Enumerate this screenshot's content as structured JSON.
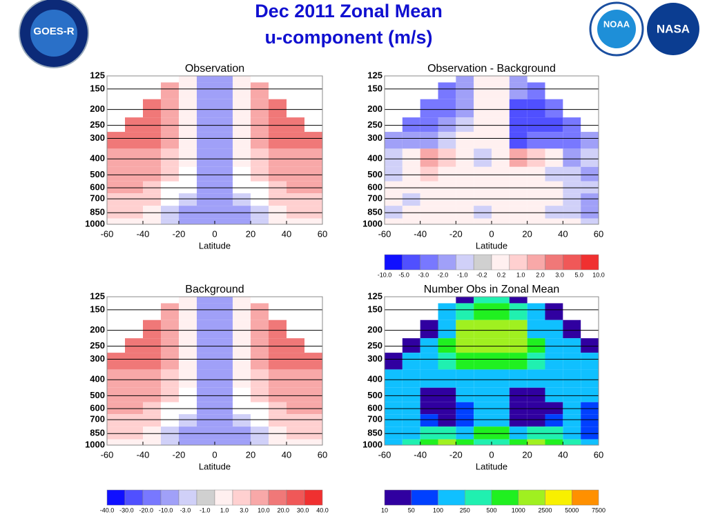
{
  "title": [
    "Dec 2011 Zonal Mean",
    "u-component (m/s)"
  ],
  "logos": [
    "GOES-R",
    "NOAA",
    "NASA"
  ],
  "chart_data": [
    {
      "type": "heatmap",
      "title": "Observation",
      "xlabel": "Latitude",
      "x": [
        -55,
        -45,
        -35,
        -25,
        -15,
        -5,
        5,
        15,
        25,
        35,
        45,
        55
      ],
      "y": [
        125,
        150,
        200,
        250,
        300,
        400,
        500,
        600,
        700,
        850,
        1000
      ],
      "xlim": [
        -60,
        60
      ],
      "xticks": [
        -60,
        -40,
        -20,
        0,
        20,
        40,
        60
      ],
      "ylim": [
        125,
        1000
      ],
      "yticks": [
        125,
        150,
        200,
        250,
        300,
        400,
        500,
        600,
        700,
        850,
        1000
      ],
      "ylog": true,
      "z": [
        [
          null,
          null,
          null,
          null,
          2,
          -8,
          -8,
          2,
          null,
          null,
          null,
          null
        ],
        [
          null,
          null,
          null,
          12,
          3,
          -8,
          -8,
          3,
          12,
          null,
          null,
          null
        ],
        [
          null,
          null,
          22,
          15,
          3,
          -6,
          -6,
          3,
          15,
          22,
          null,
          null
        ],
        [
          null,
          25,
          25,
          15,
          2,
          -5,
          -5,
          2,
          15,
          25,
          25,
          null
        ],
        [
          22,
          25,
          22,
          12,
          2,
          -4,
          -4,
          2,
          12,
          22,
          25,
          22
        ],
        [
          18,
          20,
          18,
          10,
          1.5,
          -3,
          -3,
          1.5,
          10,
          18,
          20,
          18
        ],
        [
          14,
          15,
          12,
          5,
          null,
          -4,
          -4,
          null,
          5,
          12,
          15,
          14
        ],
        [
          12,
          12,
          8,
          null,
          null,
          -5,
          -5,
          null,
          null,
          8,
          12,
          12
        ],
        [
          10,
          10,
          5,
          null,
          -2,
          -6,
          -6,
          -2,
          null,
          5,
          10,
          10
        ],
        [
          8,
          6,
          3,
          -2,
          -3,
          -6,
          -6,
          -3,
          -2,
          3,
          6,
          8
        ],
        [
          3,
          2,
          1.5,
          -2,
          -4,
          -5,
          -5,
          -4,
          -2,
          1.5,
          2,
          3
        ]
      ]
    },
    {
      "type": "heatmap",
      "title": "Observation - Background",
      "xlabel": "Latitude",
      "x": [
        -55,
        -45,
        -35,
        -25,
        -15,
        -5,
        5,
        15,
        25,
        35,
        45,
        55
      ],
      "y": [
        125,
        150,
        200,
        250,
        300,
        400,
        500,
        600,
        700,
        850,
        1000
      ],
      "xlim": [
        -60,
        60
      ],
      "xticks": [
        -60,
        -40,
        -20,
        0,
        20,
        40,
        60
      ],
      "ylim": [
        125,
        1000
      ],
      "yticks": [
        125,
        150,
        200,
        250,
        300,
        400,
        500,
        600,
        700,
        850,
        1000
      ],
      "ylog": true,
      "z": [
        [
          null,
          null,
          null,
          null,
          -1.5,
          0.5,
          0.5,
          -1.5,
          null,
          null,
          null,
          null
        ],
        [
          null,
          null,
          null,
          -2,
          -1.5,
          0.5,
          0.5,
          -1.5,
          -2,
          null,
          null,
          null
        ],
        [
          null,
          null,
          -2.5,
          -2,
          -1,
          0.5,
          0.5,
          -3.5,
          -4,
          -2.5,
          null,
          null
        ],
        [
          null,
          -2,
          -2,
          -1.5,
          -0.5,
          0.5,
          0.5,
          -4,
          -4,
          -3,
          -2,
          null
        ],
        [
          -1,
          -1.5,
          -1,
          -0.5,
          0.5,
          0.5,
          0.5,
          -3,
          -2,
          -2,
          -2,
          -1
        ],
        [
          -0.5,
          0.5,
          2.5,
          1.5,
          0.5,
          -0.5,
          0.5,
          2.5,
          1.5,
          0.5,
          -1,
          -0.5
        ],
        [
          -0.5,
          0.5,
          1.5,
          0.5,
          0.5,
          0.5,
          0.5,
          1,
          0.5,
          -0.5,
          -0.5,
          -1
        ],
        [
          0.5,
          0.5,
          0.5,
          0.5,
          0.5,
          0.5,
          0.5,
          0.5,
          0.5,
          0.5,
          -0.5,
          -0.5
        ],
        [
          0.5,
          -0.5,
          0.5,
          0.5,
          0.5,
          0.5,
          0.5,
          0.5,
          0.5,
          0.5,
          -0.5,
          -1
        ],
        [
          -0.5,
          0.5,
          0.5,
          0.5,
          0.5,
          -0.5,
          0.5,
          0.5,
          0.5,
          -0.5,
          -0.5,
          -1
        ],
        [
          0.5,
          0.5,
          0.5,
          0.5,
          0.5,
          0.5,
          0.5,
          0.5,
          0.5,
          0.5,
          0.5,
          -0.5
        ]
      ],
      "colorbar": {
        "colors": [
          "#1010ff",
          "#5050ff",
          "#7878ff",
          "#a0a0f8",
          "#d0d0f8",
          "#d0d0d0",
          "#fff0f0",
          "#ffd0d0",
          "#f8a8a8",
          "#f07878",
          "#f05858",
          "#f03030"
        ],
        "ticks": [
          {
            "value": -10,
            "label": "-10.0"
          },
          {
            "value": -5,
            "label": "-5.0"
          },
          {
            "value": -3,
            "label": "-3.0"
          },
          {
            "value": -2,
            "label": "-2.0"
          },
          {
            "value": -1,
            "label": "-1.0"
          },
          -0.2,
          0.2,
          {
            "value": 1,
            "label": "1.0"
          },
          {
            "value": 2,
            "label": "2.0"
          },
          {
            "value": 3,
            "label": "3.0"
          },
          {
            "value": 5,
            "label": "5.0"
          },
          {
            "value": 10,
            "label": "10.0"
          }
        ]
      }
    },
    {
      "type": "heatmap",
      "title": "Background",
      "xlabel": "Latitude",
      "x": [
        -55,
        -45,
        -35,
        -25,
        -15,
        -5,
        5,
        15,
        25,
        35,
        45,
        55
      ],
      "y": [
        125,
        150,
        200,
        250,
        300,
        400,
        500,
        600,
        700,
        850,
        1000
      ],
      "xlim": [
        -60,
        60
      ],
      "xticks": [
        -60,
        -40,
        -20,
        0,
        20,
        40,
        60
      ],
      "ylim": [
        125,
        1000
      ],
      "yticks": [
        125,
        150,
        200,
        250,
        300,
        400,
        500,
        600,
        700,
        850,
        1000
      ],
      "ylog": true,
      "z": [
        [
          null,
          null,
          null,
          null,
          2,
          -8,
          -8,
          2,
          null,
          null,
          null,
          null
        ],
        [
          null,
          null,
          null,
          12,
          3,
          -8,
          -8,
          3,
          12,
          null,
          null,
          null
        ],
        [
          null,
          null,
          22,
          15,
          3,
          -6,
          -6,
          3,
          15,
          22,
          null,
          null
        ],
        [
          null,
          25,
          25,
          15,
          2,
          -5,
          -5,
          2,
          15,
          25,
          25,
          null
        ],
        [
          22,
          25,
          22,
          12,
          2,
          -4,
          -4,
          2,
          12,
          22,
          25,
          22
        ],
        [
          18,
          20,
          18,
          10,
          1.5,
          -3,
          -3,
          1.5,
          10,
          18,
          20,
          18
        ],
        [
          14,
          15,
          12,
          5,
          null,
          -4,
          -4,
          null,
          5,
          12,
          15,
          14
        ],
        [
          12,
          12,
          8,
          null,
          null,
          -5,
          -5,
          null,
          null,
          8,
          12,
          12
        ],
        [
          10,
          10,
          5,
          null,
          -2,
          -6,
          -6,
          -2,
          null,
          5,
          10,
          10
        ],
        [
          8,
          6,
          3,
          -2,
          -3,
          -6,
          -6,
          -3,
          -2,
          3,
          6,
          8
        ],
        [
          3,
          2,
          1.5,
          -2,
          -4,
          -5,
          -5,
          -4,
          -2,
          1.5,
          2,
          3
        ]
      ],
      "colorbar": {
        "colors": [
          "#1010ff",
          "#5050ff",
          "#7878ff",
          "#a0a0f8",
          "#d0d0f8",
          "#d0d0d0",
          "#fff0f0",
          "#ffd0d0",
          "#f8a8a8",
          "#f07878",
          "#f05858",
          "#f03030"
        ],
        "ticks": [
          {
            "value": -40,
            "label": "-40.0"
          },
          {
            "value": -30,
            "label": "-30.0"
          },
          {
            "value": -20,
            "label": "-20.0"
          },
          {
            "value": -10,
            "label": "-10.0"
          },
          {
            "value": -3,
            "label": "-3.0"
          },
          {
            "value": -1,
            "label": "-1.0"
          },
          {
            "value": 1,
            "label": "1.0"
          },
          {
            "value": 3,
            "label": "3.0"
          },
          {
            "value": 10,
            "label": "10.0"
          },
          {
            "value": 20,
            "label": "20.0"
          },
          {
            "value": 30,
            "label": "30.0"
          },
          {
            "value": 40,
            "label": "40.0"
          }
        ]
      }
    },
    {
      "type": "heatmap",
      "title": "Number Obs in Zonal Mean",
      "xlabel": "Latitude",
      "x": [
        -55,
        -45,
        -35,
        -25,
        -15,
        -5,
        5,
        15,
        25,
        35,
        45,
        55
      ],
      "y": [
        125,
        150,
        200,
        250,
        300,
        400,
        500,
        600,
        700,
        850,
        1000
      ],
      "xlim": [
        -60,
        60
      ],
      "xticks": [
        -60,
        -40,
        -20,
        0,
        20,
        40,
        60
      ],
      "ylim": [
        125,
        1000
      ],
      "yticks": [
        125,
        150,
        200,
        250,
        300,
        400,
        500,
        600,
        700,
        850,
        1000
      ],
      "ylog": true,
      "z": [
        [
          null,
          null,
          null,
          null,
          20,
          300,
          300,
          20,
          null,
          null,
          null,
          null
        ],
        [
          null,
          null,
          null,
          150,
          300,
          600,
          600,
          300,
          150,
          20,
          null,
          null
        ],
        [
          null,
          null,
          20,
          150,
          1500,
          1500,
          1500,
          1500,
          200,
          150,
          20,
          null
        ],
        [
          null,
          20,
          150,
          600,
          1500,
          1500,
          1500,
          1500,
          600,
          150,
          150,
          20
        ],
        [
          20,
          150,
          150,
          300,
          600,
          600,
          600,
          600,
          300,
          150,
          150,
          150
        ],
        [
          150,
          150,
          150,
          150,
          150,
          150,
          150,
          150,
          150,
          150,
          150,
          150
        ],
        [
          150,
          150,
          20,
          20,
          150,
          150,
          150,
          20,
          20,
          150,
          150,
          150
        ],
        [
          150,
          150,
          20,
          20,
          80,
          150,
          150,
          20,
          20,
          20,
          150,
          80
        ],
        [
          150,
          150,
          80,
          20,
          80,
          150,
          150,
          20,
          20,
          80,
          150,
          80
        ],
        [
          150,
          150,
          300,
          300,
          150,
          600,
          600,
          150,
          300,
          300,
          150,
          80
        ],
        [
          150,
          300,
          600,
          1500,
          600,
          300,
          300,
          600,
          1500,
          600,
          300,
          150
        ]
      ],
      "colorbar": {
        "colors": [
          "#3000a0",
          "#0040ff",
          "#10c0ff",
          "#20f0b0",
          "#20f020",
          "#a0f020",
          "#f8f000",
          "#ff9000"
        ],
        "ticks": [
          10,
          50,
          100,
          250,
          500,
          1000,
          2500,
          5000,
          7500
        ]
      }
    }
  ]
}
